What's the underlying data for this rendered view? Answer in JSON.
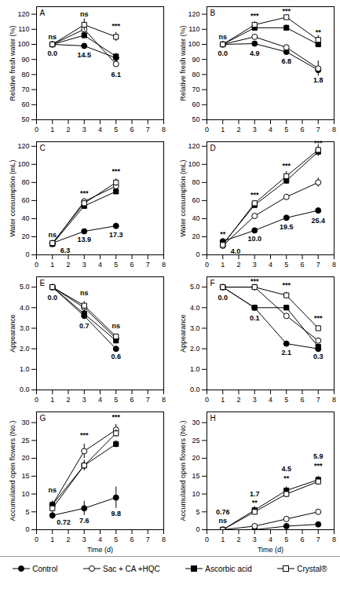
{
  "chart_data": [
    {
      "type": "line",
      "title": "A",
      "y_label": "Relative fresh water (%)",
      "x": [
        1,
        3,
        5
      ],
      "xlim": [
        0,
        8
      ],
      "xticks": [
        0,
        1,
        2,
        3,
        4,
        5,
        6,
        7,
        8
      ],
      "ylim": [
        50,
        125
      ],
      "yticks": [
        50,
        60,
        70,
        80,
        90,
        100,
        110,
        120
      ],
      "series": [
        {
          "name": "Control",
          "color": "black",
          "marker": "circle",
          "values": [
            100,
            99,
            91
          ],
          "errors": [
            0,
            1,
            1
          ]
        },
        {
          "name": "Sac + CA +HQC",
          "color": "black",
          "marker": "open-circle",
          "values": [
            100,
            110,
            87
          ],
          "errors": [
            0,
            2,
            2
          ]
        },
        {
          "name": "Ascorbic acid",
          "color": "black",
          "marker": "square",
          "values": [
            100,
            106,
            92
          ],
          "errors": [
            0,
            2,
            2
          ]
        },
        {
          "name": "Crystal®",
          "color": "black",
          "marker": "open-square",
          "values": [
            100,
            113,
            105
          ],
          "errors": [
            0,
            4,
            3
          ]
        }
      ],
      "annotations": [
        {
          "x": 1,
          "y": 105,
          "text": "ns"
        },
        {
          "x": 1,
          "y": 94,
          "text": "0.0"
        },
        {
          "x": 3,
          "y": 120,
          "text": "ns"
        },
        {
          "x": 3,
          "y": 93,
          "text": "14.5"
        },
        {
          "x": 5,
          "y": 112,
          "text": "***"
        },
        {
          "x": 5,
          "y": 80,
          "text": "6.1"
        }
      ]
    },
    {
      "type": "line",
      "title": "B",
      "y_label": "Relative fresh water (%)",
      "x": [
        1,
        3,
        5,
        7
      ],
      "xlim": [
        0,
        8
      ],
      "xticks": [
        0,
        1,
        2,
        3,
        4,
        5,
        6,
        7,
        8
      ],
      "ylim": [
        50,
        125
      ],
      "yticks": [
        50,
        60,
        70,
        80,
        90,
        100,
        110,
        120
      ],
      "series": [
        {
          "name": "Control",
          "color": "black",
          "marker": "circle",
          "values": [
            100,
            100.5,
            95,
            83
          ],
          "errors": [
            0,
            1,
            1,
            2
          ]
        },
        {
          "name": "Sac + CA +HQC",
          "color": "black",
          "marker": "open-circle",
          "values": [
            100,
            105,
            98,
            84
          ],
          "errors": [
            0,
            1,
            1,
            5
          ]
        },
        {
          "name": "Ascorbic acid",
          "color": "black",
          "marker": "square",
          "values": [
            100,
            111,
            111,
            100
          ],
          "errors": [
            0,
            2,
            2,
            2
          ]
        },
        {
          "name": "Crystal®",
          "color": "black",
          "marker": "open-square",
          "values": [
            100,
            113,
            118,
            103
          ],
          "errors": [
            0,
            2,
            1,
            3
          ]
        }
      ],
      "annotations": [
        {
          "x": 1,
          "y": 105,
          "text": "ns"
        },
        {
          "x": 1,
          "y": 94,
          "text": "0.0"
        },
        {
          "x": 3,
          "y": 119,
          "text": "***"
        },
        {
          "x": 3,
          "y": 94,
          "text": "4.9"
        },
        {
          "x": 5,
          "y": 122,
          "text": "***"
        },
        {
          "x": 5,
          "y": 89,
          "text": "6.8"
        },
        {
          "x": 7,
          "y": 108,
          "text": "**"
        },
        {
          "x": 7,
          "y": 76,
          "text": "1.8"
        }
      ]
    },
    {
      "type": "line",
      "title": "C",
      "y_label": "Water consumption (mL)",
      "x": [
        1,
        3,
        5
      ],
      "xlim": [
        0,
        8
      ],
      "xticks": [
        0,
        1,
        2,
        3,
        4,
        5,
        6,
        7,
        8
      ],
      "ylim": [
        0,
        125
      ],
      "yticks": [
        0,
        20,
        40,
        60,
        80,
        100,
        120
      ],
      "series": [
        {
          "name": "Control",
          "color": "black",
          "marker": "circle",
          "values": [
            13,
            26,
            32
          ],
          "errors": [
            1,
            2,
            2
          ]
        },
        {
          "name": "Sac + CA +HQC",
          "color": "black",
          "marker": "open-circle",
          "values": [
            12,
            59,
            76
          ],
          "errors": [
            1,
            3,
            5
          ]
        },
        {
          "name": "Ascorbic acid",
          "color": "black",
          "marker": "square",
          "values": [
            12,
            54,
            70
          ],
          "errors": [
            1,
            2,
            2
          ]
        },
        {
          "name": "Crystal®",
          "color": "black",
          "marker": "open-square",
          "values": [
            13,
            57,
            80
          ],
          "errors": [
            1,
            3,
            4
          ]
        }
      ],
      "annotations": [
        {
          "x": 1,
          "y": 22,
          "text": "ns"
        },
        {
          "x": 1.8,
          "y": 5,
          "text": "6.3"
        },
        {
          "x": 3,
          "y": 68,
          "text": "***"
        },
        {
          "x": 3,
          "y": 17,
          "text": "13.9"
        },
        {
          "x": 5,
          "y": 92,
          "text": "***"
        },
        {
          "x": 5,
          "y": 22,
          "text": "17.3"
        }
      ]
    },
    {
      "type": "line",
      "title": "D",
      "y_label": "Water consumption (mL)",
      "x": [
        1,
        3,
        5,
        7
      ],
      "xlim": [
        0,
        8
      ],
      "xticks": [
        0,
        1,
        2,
        3,
        4,
        5,
        6,
        7,
        8
      ],
      "ylim": [
        0,
        125
      ],
      "yticks": [
        0,
        20,
        40,
        60,
        80,
        100,
        120
      ],
      "series": [
        {
          "name": "Control",
          "color": "black",
          "marker": "circle",
          "values": [
            15,
            27,
            41,
            49
          ],
          "errors": [
            2,
            2,
            2,
            3
          ]
        },
        {
          "name": "Sac + CA +HQC",
          "color": "black",
          "marker": "open-circle",
          "values": [
            10,
            43,
            64,
            80
          ],
          "errors": [
            1,
            2,
            3,
            5
          ]
        },
        {
          "name": "Ascorbic acid",
          "color": "black",
          "marker": "square",
          "values": [
            12,
            55,
            82,
            114
          ],
          "errors": [
            1,
            2,
            4,
            5
          ]
        },
        {
          "name": "Crystal®",
          "color": "black",
          "marker": "open-square",
          "values": [
            11,
            57,
            87,
            116
          ],
          "errors": [
            1,
            3,
            5,
            6
          ]
        }
      ],
      "annotations": [
        {
          "x": 1,
          "y": 23,
          "text": "**"
        },
        {
          "x": 1.8,
          "y": 4,
          "text": "4.0"
        },
        {
          "x": 3,
          "y": 66,
          "text": "***"
        },
        {
          "x": 3,
          "y": 18,
          "text": "10.0"
        },
        {
          "x": 5,
          "y": 98,
          "text": "***"
        },
        {
          "x": 5,
          "y": 31,
          "text": "19.5"
        },
        {
          "x": 7,
          "y": 124,
          "text": "***"
        },
        {
          "x": 7,
          "y": 38,
          "text": "25.4"
        }
      ]
    },
    {
      "type": "line",
      "title": "E",
      "y_label": "Appearance",
      "x": [
        1,
        3,
        5
      ],
      "xlim": [
        0,
        8
      ],
      "xticks": [
        0,
        1,
        2,
        3,
        4,
        5,
        6,
        7,
        8
      ],
      "ylim": [
        0,
        5.5
      ],
      "yticks": [
        0,
        1,
        2,
        3,
        4,
        5
      ],
      "series": [
        {
          "name": "Control",
          "color": "black",
          "marker": "circle",
          "values": [
            5,
            3.6,
            2.0
          ],
          "errors": [
            0,
            0.1,
            0.1
          ]
        },
        {
          "name": "Sac + CA +HQC",
          "color": "black",
          "marker": "open-circle",
          "values": [
            5,
            4.0,
            2.5
          ],
          "errors": [
            0,
            0.2,
            0.2
          ]
        },
        {
          "name": "Ascorbic acid",
          "color": "black",
          "marker": "square",
          "values": [
            5,
            3.7,
            2.4
          ],
          "errors": [
            0,
            0.2,
            0.1
          ]
        },
        {
          "name": "Crystal®",
          "color": "black",
          "marker": "open-square",
          "values": [
            5,
            4.1,
            2.6
          ],
          "errors": [
            0,
            0.2,
            0.1
          ]
        }
      ],
      "annotations": [
        {
          "x": 1,
          "y": 4.5,
          "text": "0.0"
        },
        {
          "x": 3,
          "y": 4.7,
          "text": "ns"
        },
        {
          "x": 3,
          "y": 3.1,
          "text": "0.7"
        },
        {
          "x": 5,
          "y": 3.1,
          "text": "ns"
        },
        {
          "x": 5,
          "y": 1.6,
          "text": "0.6"
        }
      ]
    },
    {
      "type": "line",
      "title": "F",
      "y_label": "Appearance",
      "x": [
        1,
        3,
        5,
        7
      ],
      "xlim": [
        0,
        8
      ],
      "xticks": [
        0,
        1,
        2,
        3,
        4,
        5,
        6,
        7,
        8
      ],
      "ylim": [
        0,
        5.5
      ],
      "yticks": [
        0,
        1,
        2,
        3,
        4,
        5
      ],
      "series": [
        {
          "name": "Control",
          "color": "black",
          "marker": "circle",
          "values": [
            5,
            4,
            2.25,
            2.0
          ],
          "errors": [
            0,
            0,
            0.1,
            0.1
          ]
        },
        {
          "name": "Sac + CA +HQC",
          "color": "black",
          "marker": "open-circle",
          "values": [
            5,
            5,
            3.6,
            2.4
          ],
          "errors": [
            0,
            0,
            0.1,
            0.1
          ]
        },
        {
          "name": "Ascorbic acid",
          "color": "black",
          "marker": "square",
          "values": [
            5,
            4,
            4,
            2.1
          ],
          "errors": [
            0,
            0,
            0.1,
            0.1
          ]
        },
        {
          "name": "Crystal®",
          "color": "black",
          "marker": "open-square",
          "values": [
            5,
            5,
            4.6,
            3.0
          ],
          "errors": [
            0,
            0,
            0.15,
            0.1
          ]
        }
      ],
      "annotations": [
        {
          "x": 1,
          "y": 4.5,
          "text": "0.0"
        },
        {
          "x": 3,
          "y": 5.3,
          "text": "***"
        },
        {
          "x": 3,
          "y": 3.5,
          "text": "0.1"
        },
        {
          "x": 5,
          "y": 5.1,
          "text": "***"
        },
        {
          "x": 5,
          "y": 1.8,
          "text": "2.1"
        },
        {
          "x": 7,
          "y": 3.5,
          "text": "***"
        },
        {
          "x": 7,
          "y": 1.6,
          "text": "0.3"
        }
      ]
    },
    {
      "type": "line",
      "title": "G",
      "y_label": "Accumulated open flowers (No.)",
      "x_label": "Time (d)",
      "x": [
        1,
        3,
        5
      ],
      "xlim": [
        0,
        8
      ],
      "xticks": [
        0,
        1,
        2,
        3,
        4,
        5,
        6,
        7,
        8
      ],
      "ylim": [
        0,
        33
      ],
      "yticks": [
        0,
        5,
        10,
        15,
        20,
        25,
        30
      ],
      "series": [
        {
          "name": "Control",
          "color": "black",
          "marker": "circle",
          "values": [
            4,
            6,
            9
          ],
          "errors": [
            1,
            2,
            3
          ]
        },
        {
          "name": "Sac + CA +HQC",
          "color": "black",
          "marker": "open-circle",
          "values": [
            7,
            22,
            28
          ],
          "errors": [
            1,
            2,
            1.5
          ]
        },
        {
          "name": "Ascorbic acid",
          "color": "black",
          "marker": "square",
          "values": [
            7,
            18,
            24
          ],
          "errors": [
            1,
            1,
            1
          ]
        },
        {
          "name": "Crystal®",
          "color": "black",
          "marker": "open-square",
          "values": [
            6,
            18,
            27
          ],
          "errors": [
            1,
            1.5,
            1
          ]
        }
      ],
      "annotations": [
        {
          "x": 1,
          "y": 11,
          "text": "ns"
        },
        {
          "x": 1.7,
          "y": 2,
          "text": "0.72"
        },
        {
          "x": 3,
          "y": 26.5,
          "text": "***"
        },
        {
          "x": 3,
          "y": 2.5,
          "text": "7.6"
        },
        {
          "x": 5,
          "y": 31.5,
          "text": "***"
        },
        {
          "x": 5,
          "y": 4.5,
          "text": "9.8"
        }
      ]
    },
    {
      "type": "line",
      "title": "H",
      "y_label": "Accumulated open flowers (No.)",
      "x_label": "Time (d)",
      "x": [
        1,
        3,
        5,
        7
      ],
      "xlim": [
        0,
        8
      ],
      "xticks": [
        0,
        1,
        2,
        3,
        4,
        5,
        6,
        7,
        8
      ],
      "ylim": [
        0,
        33
      ],
      "yticks": [
        0,
        5,
        10,
        15,
        20,
        25,
        30
      ],
      "legend": "bottom",
      "series": [
        {
          "name": "Control",
          "color": "black",
          "marker": "circle",
          "values": [
            0,
            0,
            1,
            1.5
          ],
          "errors": [
            0,
            0,
            0.5,
            0.5
          ]
        },
        {
          "name": "Sac + CA +HQC",
          "color": "black",
          "marker": "open-circle",
          "values": [
            0,
            1,
            3,
            5
          ],
          "errors": [
            0,
            0.5,
            0.5,
            0.5
          ]
        },
        {
          "name": "Ascorbic acid",
          "color": "black",
          "marker": "square",
          "values": [
            0,
            5.5,
            11,
            14
          ],
          "errors": [
            0,
            1,
            1,
            1
          ]
        },
        {
          "name": "Crystal®",
          "color": "black",
          "marker": "open-square",
          "values": [
            0,
            5,
            10,
            13.5
          ],
          "errors": [
            0,
            0.5,
            1,
            1
          ]
        }
      ],
      "annotations": [
        {
          "x": 1,
          "y": 5,
          "text": "0.76"
        },
        {
          "x": 1,
          "y": 2.5,
          "text": "ns"
        },
        {
          "x": 3,
          "y": 10,
          "text": "1.7"
        },
        {
          "x": 3,
          "y": 7.5,
          "text": "**"
        },
        {
          "x": 5,
          "y": 17,
          "text": "4.5"
        },
        {
          "x": 5,
          "y": 14.3,
          "text": "**"
        },
        {
          "x": 7,
          "y": 20.5,
          "text": "5.9"
        },
        {
          "x": 7,
          "y": 17.8,
          "text": "***"
        }
      ]
    }
  ]
}
